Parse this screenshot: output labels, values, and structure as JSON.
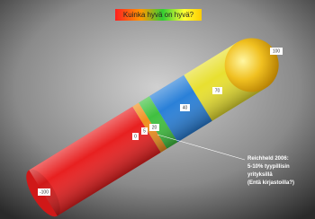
{
  "title": "Kuinka hyvä on hyvä?",
  "labels": [
    "-100",
    "0",
    "5",
    "20",
    "40",
    "70",
    "100"
  ],
  "annotation": {
    "lines": [
      "Reichheld 2006:",
      "5-10% tyypillisin",
      "yrityksillä",
      "(Entä kirjastoilla?)"
    ]
  }
}
